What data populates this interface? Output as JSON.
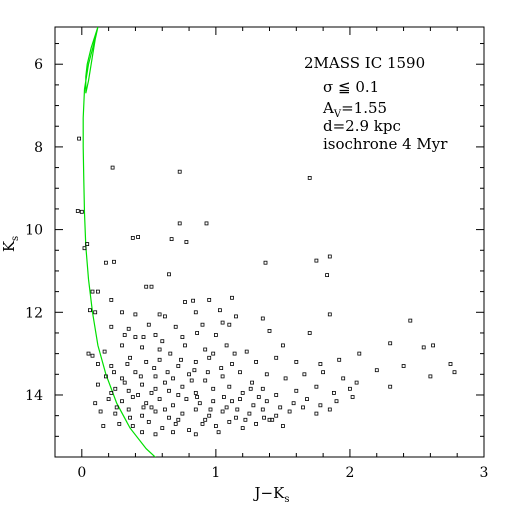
{
  "chart_data": {
    "type": "scatter",
    "xlabel": "J−K",
    "xlabel_sub": "s",
    "ylabel": "K",
    "ylabel_sub": "s",
    "xlim": [
      -0.2,
      3.0
    ],
    "ylim": [
      15.5,
      5.1
    ],
    "y_inverted": true,
    "x_ticks": [
      0,
      1,
      2,
      3
    ],
    "y_ticks": [
      6,
      8,
      10,
      12,
      14
    ],
    "x_minor_step": 0.2,
    "y_minor_step": 0.5,
    "grid": false,
    "annotations": [
      {
        "text": "2MASS IC 1590"
      },
      {
        "text": "σ ≦ 0.1"
      },
      {
        "text": "A",
        "sub": "V",
        "rest": "=1.55"
      },
      {
        "text": "d=2.9 kpc"
      },
      {
        "text": "isochrone 4 Myr"
      }
    ],
    "colors": {
      "points": "#000000",
      "isochrone": "#00e000"
    },
    "isochrone": {
      "name": "isochrone 4 Myr",
      "points": [
        [
          0.12,
          5.1
        ],
        [
          0.07,
          5.6
        ],
        [
          0.04,
          6.0
        ],
        [
          0.03,
          6.3
        ],
        [
          0.03,
          6.7
        ],
        [
          0.05,
          6.4
        ],
        [
          0.08,
          5.8
        ],
        [
          0.1,
          5.4
        ],
        [
          0.12,
          5.1
        ],
        [
          0.09,
          5.5
        ],
        [
          0.05,
          6.0
        ],
        [
          0.02,
          6.6
        ],
        [
          0.01,
          7.3
        ],
        [
          0.01,
          8.0
        ],
        [
          0.015,
          8.8
        ],
        [
          0.02,
          9.6
        ],
        [
          0.03,
          10.4
        ],
        [
          0.05,
          11.2
        ],
        [
          0.08,
          12.0
        ],
        [
          0.12,
          12.8
        ],
        [
          0.18,
          13.5
        ],
        [
          0.26,
          14.2
        ],
        [
          0.36,
          14.8
        ],
        [
          0.48,
          15.3
        ],
        [
          0.58,
          15.6
        ]
      ]
    },
    "points": [
      [
        -0.02,
        7.8
      ],
      [
        0.23,
        8.5
      ],
      [
        0.73,
        8.6
      ],
      [
        1.7,
        8.75
      ],
      [
        -0.03,
        9.55
      ],
      [
        0.0,
        9.57
      ],
      [
        0.73,
        9.85
      ],
      [
        0.93,
        9.85
      ],
      [
        0.38,
        10.2
      ],
      [
        0.42,
        10.18
      ],
      [
        0.67,
        10.23
      ],
      [
        0.78,
        10.3
      ],
      [
        0.04,
        10.35
      ],
      [
        0.02,
        10.45
      ],
      [
        0.18,
        10.8
      ],
      [
        0.24,
        10.78
      ],
      [
        1.37,
        10.8
      ],
      [
        1.75,
        10.75
      ],
      [
        1.85,
        10.65
      ],
      [
        0.65,
        11.08
      ],
      [
        1.83,
        11.1
      ],
      [
        0.08,
        11.5
      ],
      [
        0.12,
        11.5
      ],
      [
        0.48,
        11.38
      ],
      [
        0.52,
        11.38
      ],
      [
        0.22,
        11.7
      ],
      [
        0.77,
        11.75
      ],
      [
        0.83,
        11.72
      ],
      [
        0.95,
        11.7
      ],
      [
        1.12,
        11.65
      ],
      [
        0.06,
        11.95
      ],
      [
        0.1,
        12.0
      ],
      [
        0.3,
        12.0
      ],
      [
        0.4,
        12.05
      ],
      [
        0.58,
        12.05
      ],
      [
        0.62,
        12.1
      ],
      [
        0.85,
        12.0
      ],
      [
        1.03,
        11.95
      ],
      [
        1.15,
        12.1
      ],
      [
        1.35,
        12.15
      ],
      [
        1.85,
        12.05
      ],
      [
        2.45,
        12.2
      ],
      [
        0.22,
        12.35
      ],
      [
        0.35,
        12.4
      ],
      [
        0.5,
        12.3
      ],
      [
        0.7,
        12.35
      ],
      [
        0.9,
        12.3
      ],
      [
        1.05,
        12.25
      ],
      [
        1.1,
        12.3
      ],
      [
        0.4,
        12.6
      ],
      [
        0.55,
        12.55
      ],
      [
        0.75,
        12.6
      ],
      [
        1.0,
        12.55
      ],
      [
        1.4,
        12.45
      ],
      [
        1.7,
        12.5
      ],
      [
        0.05,
        13.0
      ],
      [
        0.17,
        12.95
      ],
      [
        0.3,
        12.8
      ],
      [
        0.45,
        12.85
      ],
      [
        0.6,
        12.7
      ],
      [
        0.77,
        12.8
      ],
      [
        0.92,
        12.9
      ],
      [
        1.08,
        12.8
      ],
      [
        1.23,
        12.95
      ],
      [
        1.5,
        12.8
      ],
      [
        2.07,
        13.0
      ],
      [
        2.3,
        12.75
      ],
      [
        2.55,
        12.85
      ],
      [
        2.62,
        12.8
      ],
      [
        0.12,
        13.25
      ],
      [
        0.22,
        13.3
      ],
      [
        0.36,
        13.1
      ],
      [
        0.48,
        13.2
      ],
      [
        0.58,
        13.15
      ],
      [
        0.72,
        13.3
      ],
      [
        0.85,
        13.2
      ],
      [
        0.95,
        13.1
      ],
      [
        1.12,
        13.25
      ],
      [
        1.3,
        13.2
      ],
      [
        1.45,
        13.1
      ],
      [
        1.6,
        13.2
      ],
      [
        1.78,
        13.25
      ],
      [
        1.92,
        13.15
      ],
      [
        2.2,
        13.4
      ],
      [
        2.4,
        13.3
      ],
      [
        2.75,
        13.25
      ],
      [
        0.18,
        13.55
      ],
      [
        0.3,
        13.6
      ],
      [
        0.4,
        13.45
      ],
      [
        0.55,
        13.55
      ],
      [
        0.68,
        13.6
      ],
      [
        0.8,
        13.5
      ],
      [
        0.92,
        13.65
      ],
      [
        1.05,
        13.55
      ],
      [
        1.18,
        13.45
      ],
      [
        1.27,
        13.7
      ],
      [
        1.38,
        13.5
      ],
      [
        1.52,
        13.6
      ],
      [
        1.66,
        13.5
      ],
      [
        1.8,
        13.45
      ],
      [
        1.95,
        13.6
      ],
      [
        2.05,
        13.7
      ],
      [
        2.6,
        13.55
      ],
      [
        2.78,
        13.45
      ],
      [
        0.25,
        13.85
      ],
      [
        0.35,
        13.9
      ],
      [
        0.45,
        13.75
      ],
      [
        0.55,
        13.85
      ],
      [
        0.65,
        13.9
      ],
      [
        0.75,
        13.8
      ],
      [
        0.85,
        13.95
      ],
      [
        0.98,
        13.85
      ],
      [
        1.1,
        13.8
      ],
      [
        1.2,
        13.95
      ],
      [
        1.35,
        13.85
      ],
      [
        1.45,
        14.0
      ],
      [
        1.6,
        13.9
      ],
      [
        1.75,
        13.8
      ],
      [
        1.88,
        13.95
      ],
      [
        2.0,
        13.85
      ],
      [
        2.3,
        13.8
      ],
      [
        0.2,
        14.1
      ],
      [
        0.3,
        14.15
      ],
      [
        0.38,
        14.05
      ],
      [
        0.48,
        14.2
      ],
      [
        0.58,
        14.1
      ],
      [
        0.68,
        14.25
      ],
      [
        0.78,
        14.1
      ],
      [
        0.88,
        14.2
      ],
      [
        0.98,
        14.15
      ],
      [
        1.08,
        14.3
      ],
      [
        1.18,
        14.1
      ],
      [
        1.28,
        14.25
      ],
      [
        1.38,
        14.15
      ],
      [
        1.48,
        14.3
      ],
      [
        1.58,
        14.2
      ],
      [
        1.68,
        14.1
      ],
      [
        1.78,
        14.25
      ],
      [
        1.9,
        14.15
      ],
      [
        2.02,
        14.05
      ],
      [
        0.14,
        14.4
      ],
      [
        0.25,
        14.45
      ],
      [
        0.35,
        14.35
      ],
      [
        0.45,
        14.5
      ],
      [
        0.55,
        14.4
      ],
      [
        0.65,
        14.55
      ],
      [
        0.75,
        14.45
      ],
      [
        0.85,
        14.35
      ],
      [
        0.95,
        14.5
      ],
      [
        1.05,
        14.4
      ],
      [
        1.15,
        14.55
      ],
      [
        1.25,
        14.45
      ],
      [
        1.35,
        14.35
      ],
      [
        1.45,
        14.5
      ],
      [
        1.55,
        14.4
      ],
      [
        1.65,
        14.3
      ],
      [
        1.75,
        14.45
      ],
      [
        1.85,
        14.35
      ],
      [
        0.28,
        14.7
      ],
      [
        0.38,
        14.75
      ],
      [
        0.5,
        14.65
      ],
      [
        0.6,
        14.8
      ],
      [
        0.7,
        14.7
      ],
      [
        0.8,
        14.85
      ],
      [
        0.9,
        14.7
      ],
      [
        1.0,
        14.75
      ],
      [
        1.1,
        14.65
      ],
      [
        1.2,
        14.8
      ],
      [
        1.3,
        14.7
      ],
      [
        1.4,
        14.6
      ],
      [
        1.5,
        14.75
      ],
      [
        0.45,
        14.9
      ],
      [
        0.55,
        14.95
      ],
      [
        0.68,
        14.9
      ],
      [
        0.85,
        14.95
      ],
      [
        1.02,
        14.9
      ],
      [
        0.32,
        13.7
      ],
      [
        0.42,
        14.0
      ],
      [
        0.52,
        13.95
      ],
      [
        0.62,
        13.7
      ],
      [
        0.72,
        14.0
      ],
      [
        0.82,
        13.65
      ],
      [
        0.52,
        14.3
      ],
      [
        0.62,
        14.35
      ],
      [
        0.72,
        14.6
      ],
      [
        0.92,
        14.6
      ],
      [
        1.12,
        14.15
      ],
      [
        1.22,
        14.6
      ],
      [
        1.32,
        14.05
      ],
      [
        1.42,
        14.6
      ],
      [
        0.26,
        14.3
      ],
      [
        0.36,
        14.55
      ],
      [
        0.46,
        14.3
      ],
      [
        0.86,
        14.05
      ],
      [
        0.96,
        14.35
      ],
      [
        1.06,
        14.05
      ],
      [
        1.16,
        14.35
      ],
      [
        1.26,
        13.85
      ],
      [
        1.36,
        14.55
      ],
      [
        0.24,
        13.45
      ],
      [
        0.34,
        13.25
      ],
      [
        0.44,
        13.55
      ],
      [
        0.54,
        13.35
      ],
      [
        0.64,
        13.45
      ],
      [
        0.74,
        13.15
      ],
      [
        0.84,
        13.4
      ],
      [
        0.94,
        13.45
      ],
      [
        1.04,
        13.35
      ],
      [
        0.16,
        14.75
      ],
      [
        0.22,
        13.95
      ],
      [
        0.12,
        13.75
      ],
      [
        0.08,
        13.05
      ],
      [
        0.1,
        14.2
      ],
      [
        0.58,
        12.9
      ],
      [
        0.66,
        13.0
      ],
      [
        0.86,
        12.5
      ],
      [
        0.98,
        13.0
      ],
      [
        1.14,
        13.0
      ],
      [
        0.32,
        12.55
      ],
      [
        0.46,
        12.6
      ]
    ]
  }
}
